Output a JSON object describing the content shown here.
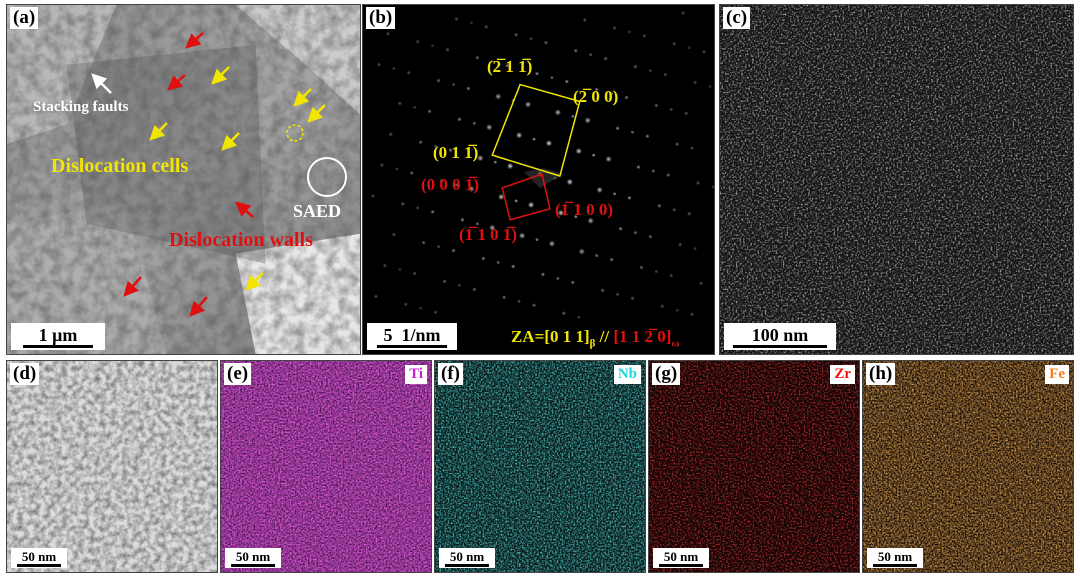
{
  "panels": {
    "a": {
      "label": "(a)",
      "annotations": {
        "stacking_faults": "Stacking faults",
        "dislocation_cells": "Dislocation cells",
        "saed": "SAED",
        "dislocation_walls": "Dislocation walls"
      },
      "scale_bar": "1 μm"
    },
    "b": {
      "label": "(b)",
      "indices": {
        "y1": "(2̅ 1 1̅)",
        "y2": "(2̅ 0 0)",
        "y3": "(0 1 1̅)",
        "r1": "(0 0 0 1̅)",
        "r2": "(1̅ 1 0 0)",
        "r3": "(1̅ 1 0 1̅)"
      },
      "zone_axis_prefix": "ZA=[0 1 1]",
      "zone_axis_beta": "β",
      "zone_axis_sep": " // ",
      "zone_axis_omega_indices": "[1 1 2̅ 0]",
      "zone_axis_omega": "ω",
      "scale_bar": "5  1/nm"
    },
    "c": {
      "label": "(c)",
      "scale_bar": "100 nm"
    },
    "d": {
      "label": "(d)",
      "scale_bar": "50 nm"
    },
    "e": {
      "label": "(e)",
      "element": "Ti",
      "scale_bar": "50 nm"
    },
    "f": {
      "label": "(f)",
      "element": "Nb",
      "scale_bar": "50 nm"
    },
    "g": {
      "label": "(g)",
      "element": "Zr",
      "scale_bar": "50 nm"
    },
    "h": {
      "label": "(h)",
      "element": "Fe",
      "scale_bar": "50 nm"
    }
  },
  "colors": {
    "yellow": "#f2e600",
    "red": "#e01010",
    "ti": "#d21ed2",
    "nb": "#22d6d6",
    "zr": "#ee1010",
    "fe": "#f08020"
  }
}
